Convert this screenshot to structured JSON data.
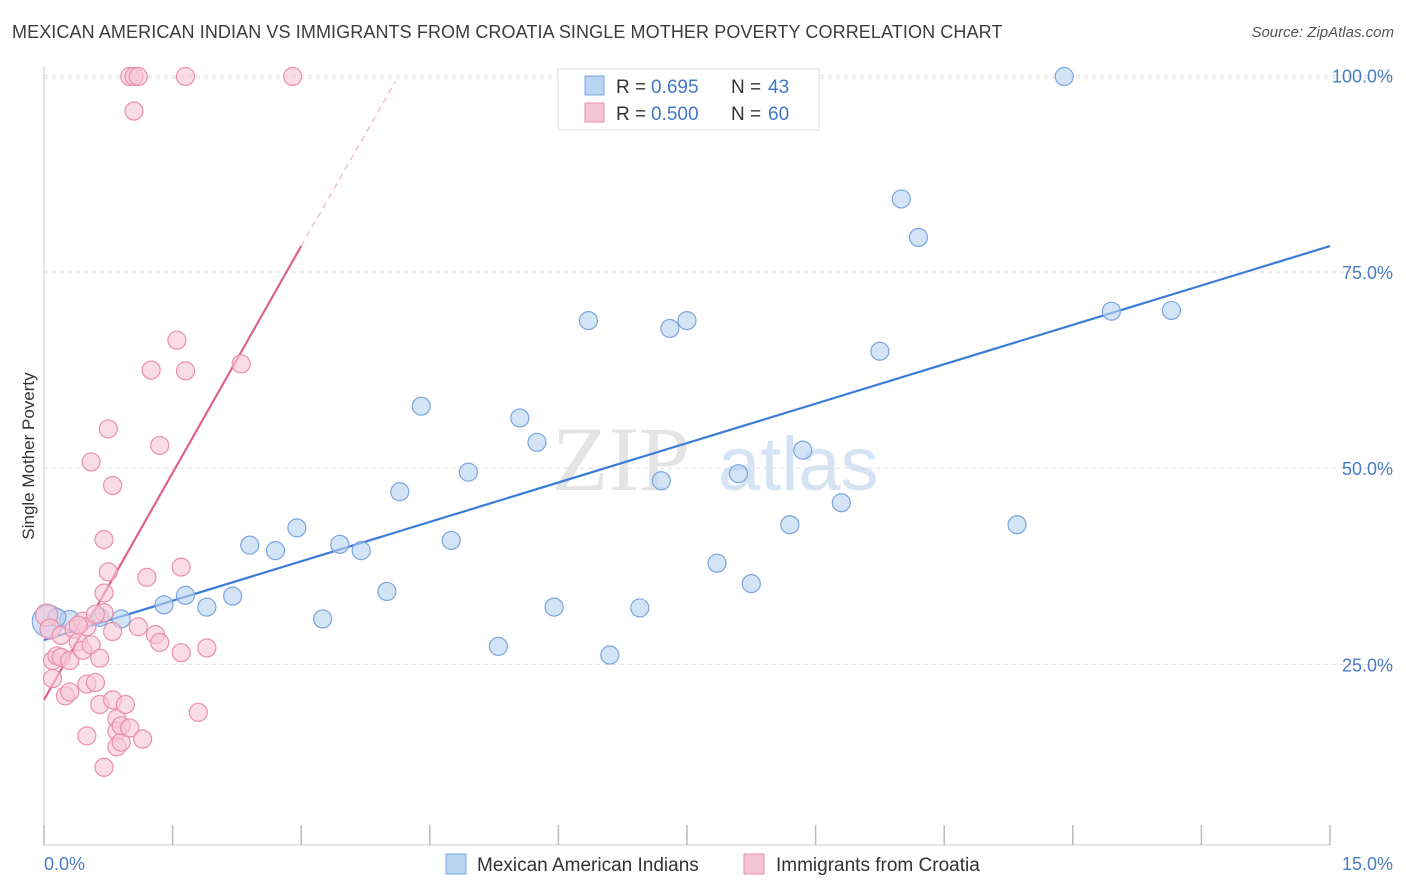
{
  "title": "MEXICAN AMERICAN INDIAN VS IMMIGRANTS FROM CROATIA SINGLE MOTHER POVERTY CORRELATION CHART",
  "source": "Source: ZipAtlas.com",
  "watermark": {
    "zip": "ZIP",
    "atlas": "atlas"
  },
  "legend": {
    "r_label": "R =",
    "n_label": "N =",
    "rows": [
      {
        "r": "0.695",
        "n": "43"
      },
      {
        "r": "0.500",
        "n": "60"
      }
    ]
  },
  "colors": {
    "blue_fill": "#b9d3f2",
    "blue_stroke": "#7aa5dd",
    "blue_line": "#3b7dd8",
    "pink_fill": "#f7c6d6",
    "pink_stroke": "#ea8fae",
    "pink_line": "#e0608e",
    "grid": "#dddddd",
    "tick_text": "#4a7cc4"
  },
  "chart_data": {
    "type": "scatter",
    "title": "MEXICAN AMERICAN INDIAN VS IMMIGRANTS FROM CROATIA SINGLE MOTHER POVERTY CORRELATION CHART",
    "xlabel": "",
    "ylabel": "Single Mother Poverty",
    "xlim": [
      0,
      15
    ],
    "ylim": [
      2,
      102
    ],
    "x_tick_labels": [
      "0.0%",
      "15.0%"
    ],
    "y_ticks": [
      25,
      50,
      75,
      100
    ],
    "y_tick_labels": [
      "25.0%",
      "50.0%",
      "75.0%",
      "100.0%"
    ],
    "series": [
      {
        "name": "Mexican American Indians",
        "color": "#b9d3f2",
        "trend": {
          "x0": 0,
          "y0": 28.1,
          "x1": 15,
          "y1": 78.3
        },
        "points": [
          [
            0.05,
            30.5,
            16
          ],
          [
            0.3,
            30.6,
            10
          ],
          [
            0.65,
            31.0,
            9
          ],
          [
            0.9,
            30.8,
            9
          ],
          [
            1.4,
            32.6,
            9
          ],
          [
            1.65,
            33.8,
            9
          ],
          [
            1.9,
            32.3,
            9
          ],
          [
            2.2,
            33.7,
            9
          ],
          [
            2.4,
            40.2,
            9
          ],
          [
            2.7,
            39.5,
            9
          ],
          [
            2.95,
            42.4,
            9
          ],
          [
            3.25,
            30.8,
            9
          ],
          [
            3.45,
            40.3,
            9
          ],
          [
            3.7,
            39.5,
            9
          ],
          [
            4.0,
            34.3,
            9
          ],
          [
            4.15,
            47.0,
            9
          ],
          [
            4.4,
            57.9,
            9
          ],
          [
            4.75,
            40.8,
            9
          ],
          [
            4.95,
            49.5,
            9
          ],
          [
            5.3,
            27.3,
            9
          ],
          [
            5.55,
            56.4,
            9
          ],
          [
            5.75,
            53.3,
            9
          ],
          [
            5.95,
            32.3,
            9
          ],
          [
            6.35,
            68.8,
            9
          ],
          [
            6.6,
            26.2,
            9
          ],
          [
            6.95,
            32.2,
            9
          ],
          [
            7.2,
            48.4,
            9
          ],
          [
            7.3,
            67.8,
            9
          ],
          [
            7.5,
            68.8,
            9
          ],
          [
            7.85,
            37.9,
            9
          ],
          [
            8.1,
            49.3,
            9
          ],
          [
            8.25,
            35.3,
            9
          ],
          [
            8.7,
            42.8,
            9
          ],
          [
            8.85,
            52.3,
            9
          ],
          [
            9.3,
            45.6,
            9
          ],
          [
            9.75,
            64.9,
            9
          ],
          [
            10.0,
            84.3,
            9
          ],
          [
            10.2,
            79.4,
            9
          ],
          [
            11.35,
            42.8,
            9
          ],
          [
            11.9,
            99.9,
            9
          ],
          [
            12.45,
            70.0,
            9
          ],
          [
            13.15,
            70.1,
            9
          ],
          [
            0.15,
            31.0,
            9
          ]
        ]
      },
      {
        "name": "Immigrants from Croatia",
        "color": "#f7c6d6",
        "trend": {
          "x0": 0,
          "y0": 20.5,
          "x1": 3.0,
          "y1": 78.3
        },
        "trend_dashed": {
          "x0": 3.0,
          "y0": 78.3,
          "x1": 4.1,
          "y1": 99.3
        },
        "points": [
          [
            0.03,
            31.3,
            11
          ],
          [
            0.07,
            29.5,
            10
          ],
          [
            0.1,
            25.5,
            9
          ],
          [
            0.1,
            23.2,
            9
          ],
          [
            0.15,
            26.1,
            9
          ],
          [
            0.2,
            28.7,
            9
          ],
          [
            0.2,
            25.9,
            9
          ],
          [
            0.25,
            21.0,
            9
          ],
          [
            0.3,
            21.5,
            9
          ],
          [
            0.3,
            25.5,
            9
          ],
          [
            0.35,
            29.5,
            9
          ],
          [
            0.4,
            27.9,
            9
          ],
          [
            0.45,
            26.8,
            9
          ],
          [
            0.45,
            30.5,
            9
          ],
          [
            0.5,
            29.8,
            9
          ],
          [
            0.55,
            27.5,
            9
          ],
          [
            0.5,
            15.9,
            9
          ],
          [
            0.55,
            50.8,
            9
          ],
          [
            0.5,
            22.5,
            9
          ],
          [
            0.6,
            22.7,
            9
          ],
          [
            0.65,
            25.8,
            9
          ],
          [
            0.65,
            19.9,
            9
          ],
          [
            0.7,
            31.6,
            9
          ],
          [
            0.7,
            34.1,
            9
          ],
          [
            0.7,
            40.9,
            9
          ],
          [
            0.75,
            36.8,
            9
          ],
          [
            0.7,
            11.9,
            9
          ],
          [
            0.8,
            20.5,
            9
          ],
          [
            0.75,
            55.0,
            9
          ],
          [
            0.8,
            47.8,
            9
          ],
          [
            0.85,
            18.1,
            9
          ],
          [
            0.85,
            16.5,
            9
          ],
          [
            0.85,
            14.5,
            9
          ],
          [
            0.9,
            15.1,
            9
          ],
          [
            0.9,
            17.2,
            9
          ],
          [
            0.95,
            19.9,
            9
          ],
          [
            1.0,
            16.9,
            9
          ],
          [
            1.1,
            29.8,
            9
          ],
          [
            1.15,
            15.5,
            9
          ],
          [
            1.2,
            36.1,
            9
          ],
          [
            1.25,
            62.5,
            9
          ],
          [
            1.3,
            28.8,
            9
          ],
          [
            1.35,
            27.8,
            9
          ],
          [
            1.35,
            52.9,
            9
          ],
          [
            1.55,
            66.3,
            9
          ],
          [
            1.6,
            37.4,
            9
          ],
          [
            1.6,
            26.5,
            9
          ],
          [
            1.65,
            62.4,
            9
          ],
          [
            1.8,
            18.9,
            9
          ],
          [
            1.9,
            27.1,
            9
          ],
          [
            2.3,
            63.3,
            9
          ],
          [
            1.0,
            99.9,
            9
          ],
          [
            1.05,
            99.9,
            9
          ],
          [
            1.1,
            99.9,
            9
          ],
          [
            1.05,
            95.5,
            9
          ],
          [
            1.65,
            99.9,
            9
          ],
          [
            2.9,
            99.9,
            9
          ],
          [
            0.4,
            30.0,
            9
          ],
          [
            0.6,
            31.4,
            9
          ],
          [
            0.8,
            29.2,
            9
          ]
        ]
      }
    ]
  },
  "bottom_legend": [
    {
      "label": "Mexican American Indians"
    },
    {
      "label": "Immigrants from Croatia"
    }
  ]
}
